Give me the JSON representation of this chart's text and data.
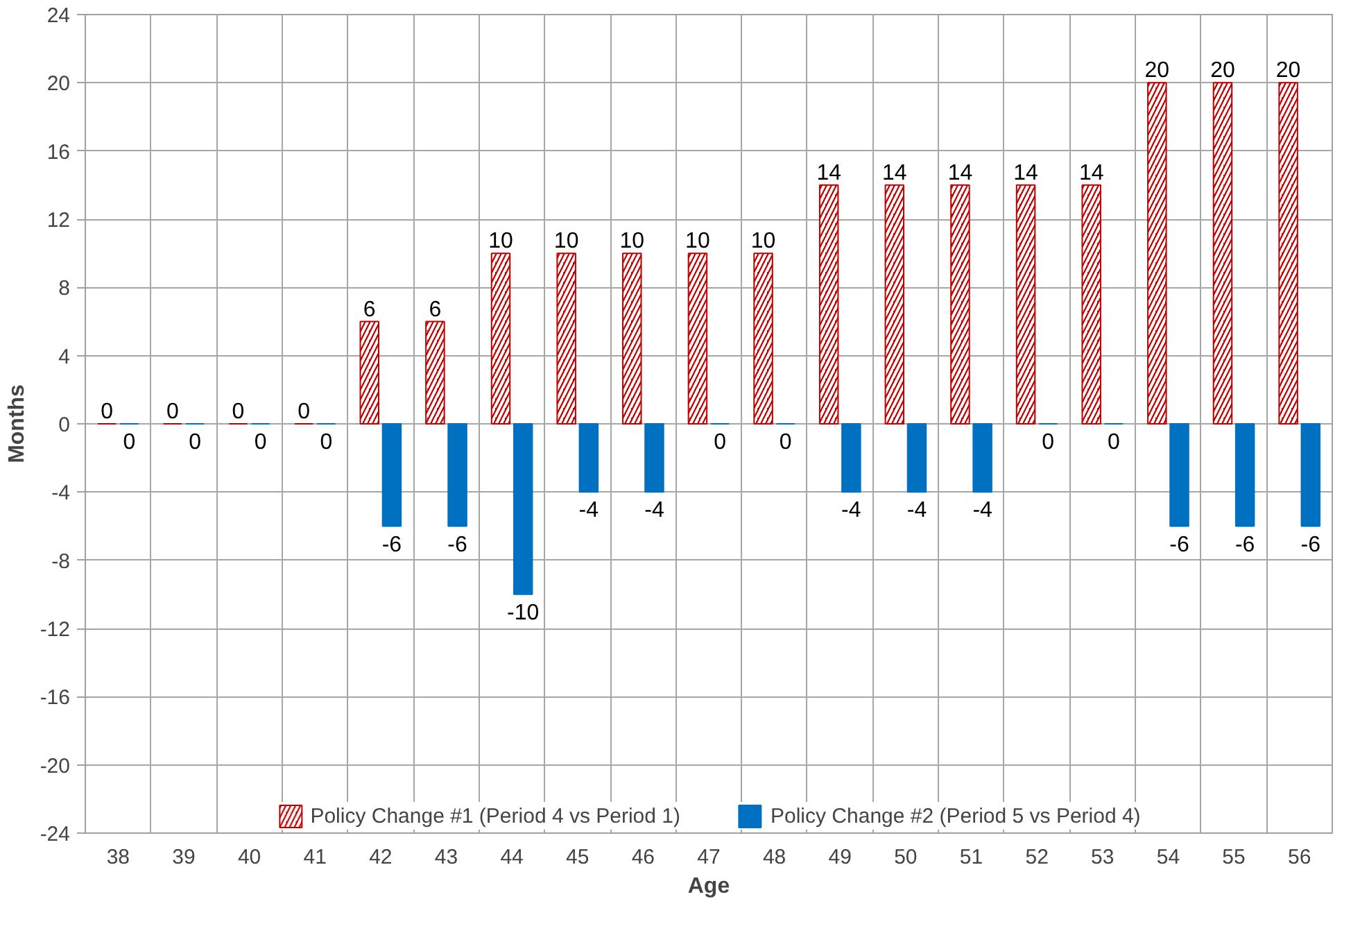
{
  "chart_data": {
    "type": "bar",
    "xlabel": "Age",
    "ylabel": "Months",
    "categories": [
      "38",
      "39",
      "40",
      "41",
      "42",
      "43",
      "44",
      "45",
      "46",
      "47",
      "48",
      "49",
      "50",
      "51",
      "52",
      "53",
      "54",
      "55",
      "56"
    ],
    "series": [
      {
        "name": "Policy Change #1 (Period 4 vs Period 1)",
        "color": "#c00000",
        "values": [
          0,
          0,
          0,
          0,
          6,
          6,
          10,
          10,
          10,
          10,
          10,
          14,
          14,
          14,
          14,
          14,
          20,
          20,
          20
        ]
      },
      {
        "name": "Policy Change #2 (Period 5 vs Period 4)",
        "color": "#0070c0",
        "values": [
          0,
          0,
          0,
          0,
          -6,
          -6,
          -10,
          -4,
          -4,
          0,
          0,
          -4,
          -4,
          -4,
          0,
          0,
          -6,
          -6,
          -6
        ]
      }
    ],
    "ylim": [
      -24,
      24
    ],
    "yticks": [
      -24,
      -20,
      -16,
      -12,
      -8,
      -4,
      0,
      4,
      8,
      12,
      16,
      20,
      24
    ],
    "grid": true,
    "legend": "bottom",
    "data_labels": true
  }
}
